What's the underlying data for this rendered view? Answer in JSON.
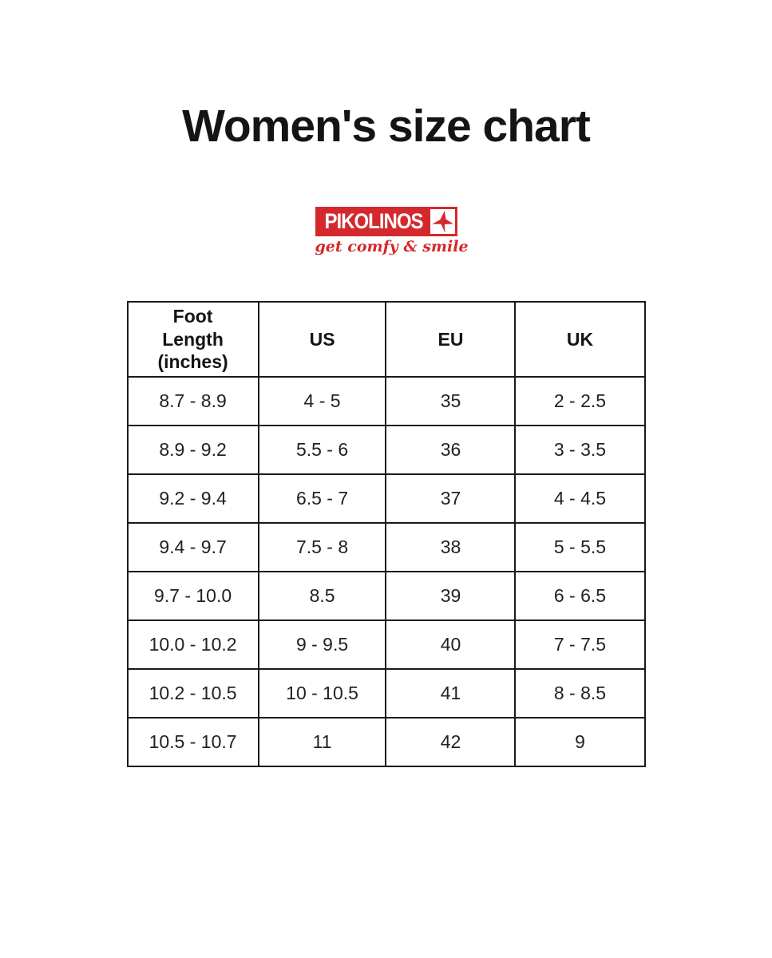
{
  "page": {
    "title": "Women's size chart",
    "background_color": "#ffffff",
    "text_color": "#141414"
  },
  "logo": {
    "brand": "PIKOLINOS",
    "tagline": "get comfy & smile",
    "brand_color": "#d5282d",
    "bird_icon": "hummingbird-icon"
  },
  "chart_data": {
    "type": "table",
    "title": "Women's size chart",
    "columns": [
      "Foot Length (inches)",
      "US",
      "EU",
      "UK"
    ],
    "rows": [
      [
        "8.7 - 8.9",
        "4 - 5",
        "35",
        "2 - 2.5"
      ],
      [
        "8.9 - 9.2",
        "5.5 - 6",
        "36",
        "3 - 3.5"
      ],
      [
        "9.2 - 9.4",
        "6.5 - 7",
        "37",
        "4 - 4.5"
      ],
      [
        "9.4 - 9.7",
        "7.5 - 8",
        "38",
        "5 - 5.5"
      ],
      [
        "9.7 - 10.0",
        "8.5",
        "39",
        "6 - 6.5"
      ],
      [
        "10.0 - 10.2",
        "9 - 9.5",
        "40",
        "7 - 7.5"
      ],
      [
        "10.2 - 10.5",
        "10 - 10.5",
        "41",
        "8 - 8.5"
      ],
      [
        "10.5 - 10.7",
        "11",
        "42",
        "9"
      ]
    ]
  }
}
